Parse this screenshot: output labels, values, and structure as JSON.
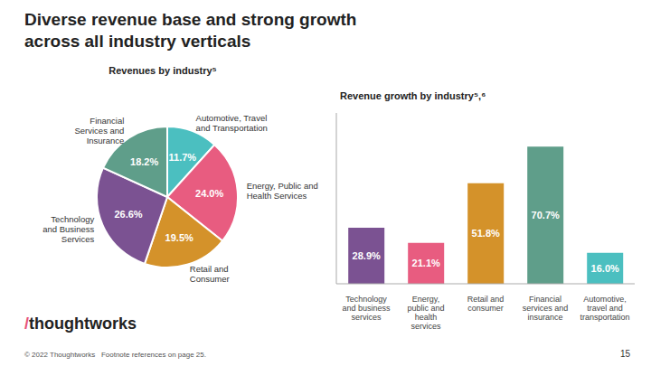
{
  "title": "Diverse revenue base and strong growth\nacross all industry verticals",
  "annotations": [
    {
      "text": "/",
      "color": "#e8547a"
    },
    {
      "text": "thoughtworks"
    },
    {
      "text": "© 2022 Thoughtworks   Footnote references on page 25."
    },
    {
      "text": "15"
    }
  ],
  "chart_data": [
    {
      "type": "pie",
      "title": "Revenues by industry⁵",
      "categories": [
        "Automotive, Travel\nand Transportation",
        "Energy, Public and\nHealth Services",
        "Retail and\nConsumer",
        "Technology\nand Business\nServices",
        "Financial\nServices and\nInsurance"
      ],
      "values": [
        11.7,
        24.0,
        19.5,
        26.6,
        18.2
      ],
      "value_labels": [
        "11.7%",
        "24.0%",
        "19.5%",
        "26.6%",
        "18.2%"
      ],
      "data_labels": true,
      "colors": [
        "#4bbfc0",
        "#e85c80",
        "#d4922a",
        "#7b5292",
        "#5f9e8a"
      ]
    },
    {
      "type": "bar",
      "title": "Revenue growth by industry⁵,⁶",
      "categories": [
        "Technology\nand business\nservices",
        "Energy,\npublic and\nhealth\nservices",
        "Retail and\nconsumer",
        "Financial\nservices and\ninsurance",
        "Automotive,\ntravel and\ntransportation"
      ],
      "values": [
        28.9,
        21.1,
        51.8,
        70.7,
        16.0
      ],
      "value_labels": [
        "28.9%",
        "21.1%",
        "51.8%",
        "70.7%",
        "16.0%"
      ],
      "data_labels": true,
      "colors": [
        "#7b5292",
        "#e85c80",
        "#d4922a",
        "#5f9e8a",
        "#4bbfc0"
      ],
      "ylim": [
        0,
        88
      ],
      "tick_labels": "x",
      "grid": false
    }
  ]
}
